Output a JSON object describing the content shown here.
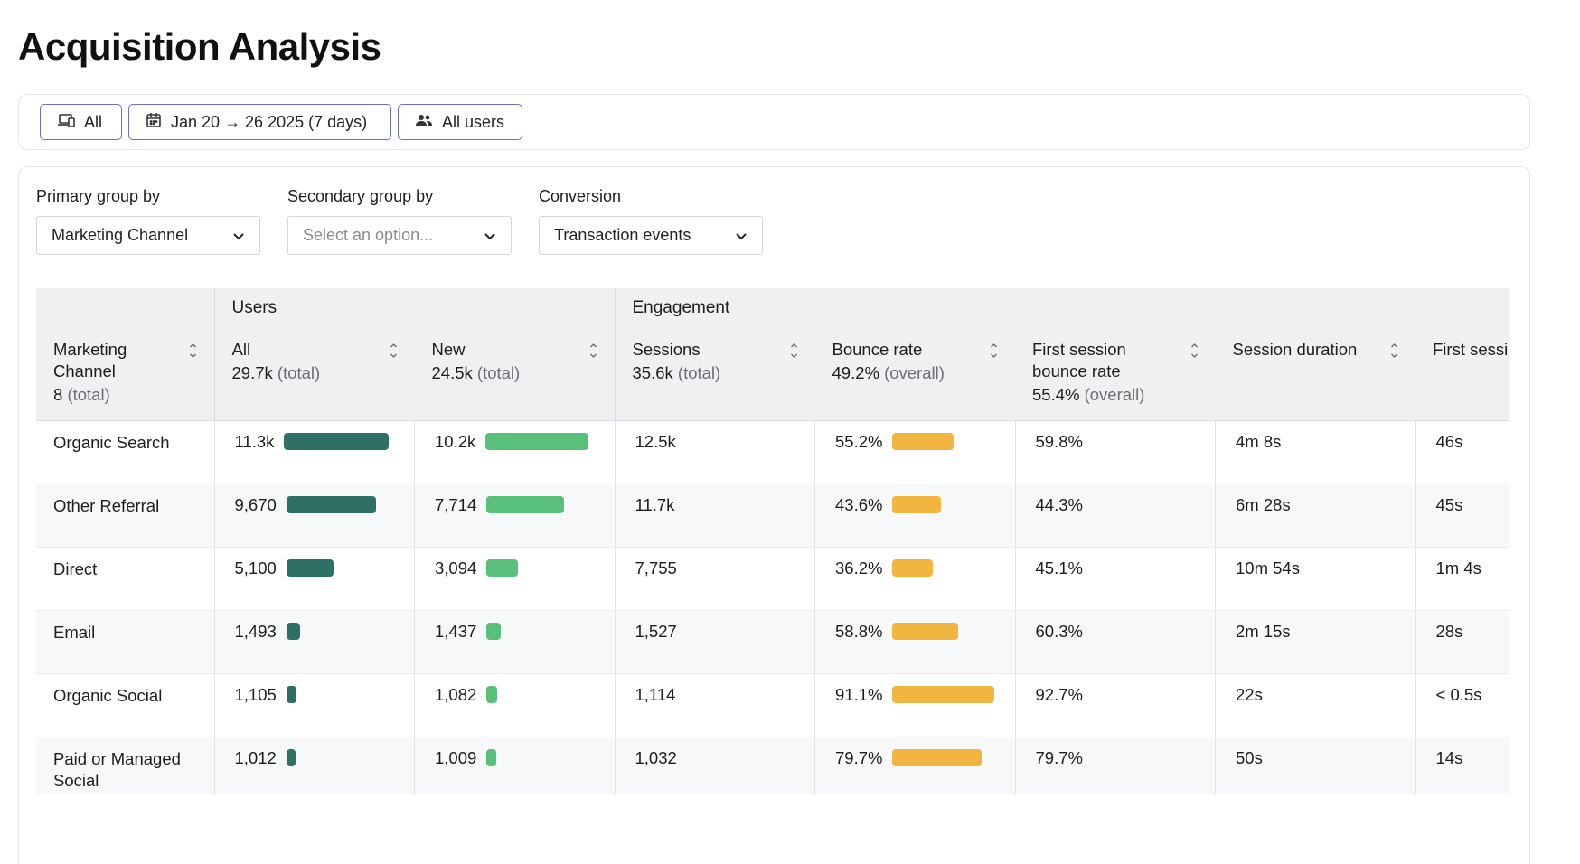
{
  "page": {
    "title": "Acquisition Analysis"
  },
  "filters": {
    "device_label": "All",
    "date_label": "Jan 20 → 26 2025 (7 days)",
    "users_label": "All users"
  },
  "controls": {
    "primary_label": "Primary group by",
    "primary_value": "Marketing Channel",
    "secondary_label": "Secondary group by",
    "secondary_placeholder": "Select an option...",
    "conversion_label": "Conversion",
    "conversion_value": "Transaction events"
  },
  "table": {
    "groups": {
      "users": "Users",
      "engagement": "Engagement"
    },
    "columns": {
      "channel": {
        "name": "Marketing Channel",
        "value": "8",
        "suffix": "(total)"
      },
      "all": {
        "name": "All",
        "value": "29.7k",
        "suffix": "(total)"
      },
      "new": {
        "name": "New",
        "value": "24.5k",
        "suffix": "(total)"
      },
      "sessions": {
        "name": "Sessions",
        "value": "35.6k",
        "suffix": "(total)"
      },
      "bounce": {
        "name": "Bounce rate",
        "value": "49.2%",
        "suffix": "(overall)"
      },
      "first_bounce": {
        "name": "First session bounce rate",
        "value": "55.4%",
        "suffix": "(overall)"
      },
      "duration": {
        "name": "Session duration"
      },
      "first_session": {
        "name": "First sessi"
      }
    },
    "rows": [
      {
        "channel": "Organic Search",
        "all": "11.3k",
        "all_bar": 1.0,
        "new": "10.2k",
        "new_bar": 1.0,
        "sessions": "12.5k",
        "bounce": "55.2%",
        "bounce_bar": 0.606,
        "first_bounce": "59.8%",
        "duration": "4m 8s",
        "first_session": "46s"
      },
      {
        "channel": "Other Referral",
        "all": "9,670",
        "all_bar": 0.856,
        "new": "7,714",
        "new_bar": 0.756,
        "sessions": "11.7k",
        "bounce": "43.6%",
        "bounce_bar": 0.479,
        "first_bounce": "44.3%",
        "duration": "6m 28s",
        "first_session": "45s"
      },
      {
        "channel": "Direct",
        "all": "5,100",
        "all_bar": 0.451,
        "new": "3,094",
        "new_bar": 0.303,
        "sessions": "7,755",
        "bounce": "36.2%",
        "bounce_bar": 0.397,
        "first_bounce": "45.1%",
        "duration": "10m 54s",
        "first_session": "1m 4s"
      },
      {
        "channel": "Email",
        "all": "1,493",
        "all_bar": 0.132,
        "new": "1,437",
        "new_bar": 0.141,
        "sessions": "1,527",
        "bounce": "58.8%",
        "bounce_bar": 0.645,
        "first_bounce": "60.3%",
        "duration": "2m 15s",
        "first_session": "28s"
      },
      {
        "channel": "Organic Social",
        "all": "1,105",
        "all_bar": 0.098,
        "new": "1,082",
        "new_bar": 0.106,
        "sessions": "1,114",
        "bounce": "91.1%",
        "bounce_bar": 1.0,
        "first_bounce": "92.7%",
        "duration": "22s",
        "first_session": "< 0.5s"
      },
      {
        "channel": "Paid or Managed Social",
        "all": "1,012",
        "all_bar": 0.09,
        "new": "1,009",
        "new_bar": 0.099,
        "sessions": "1,032",
        "bounce": "79.7%",
        "bounce_bar": 0.875,
        "first_bounce": "79.7%",
        "duration": "50s",
        "first_session": "14s"
      }
    ]
  }
}
